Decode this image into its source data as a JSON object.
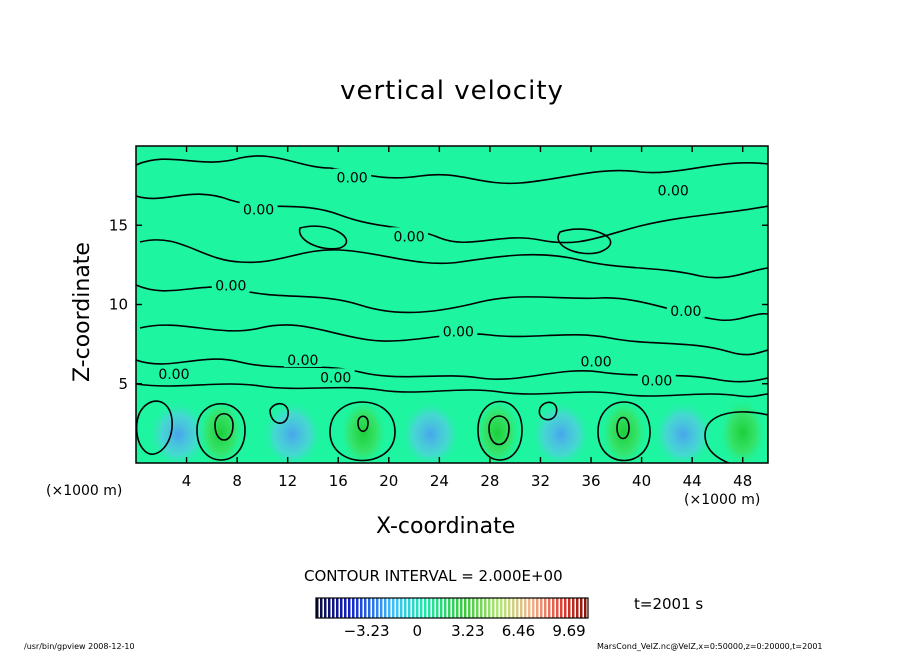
{
  "colors": {
    "field_background": "#1ef5a0",
    "blue_anomaly": "#4fa8f0",
    "green_updraft": "#2ed84a",
    "contour_line": "#000000"
  },
  "chart_data": {
    "type": "contour",
    "title": "vertical velocity",
    "xlabel": "X-coordinate",
    "ylabel": "Z-coordinate",
    "x_unit_label": "(×1000 m)",
    "xlim": [
      0,
      50
    ],
    "ylim": [
      0,
      20
    ],
    "x_ticks": [
      4,
      8,
      12,
      16,
      20,
      24,
      28,
      32,
      36,
      40,
      44,
      48
    ],
    "y_ticks": [
      5,
      10,
      15
    ],
    "contour_interval_text": "CONTOUR INTERVAL = 2.000E+00",
    "contour_labels": [
      {
        "text": "0.00",
        "x": 17.1,
        "z": 18.0
      },
      {
        "text": "0.00",
        "x": 9.7,
        "z": 16.0
      },
      {
        "text": "0.00",
        "x": 21.6,
        "z": 14.3
      },
      {
        "text": "0.00",
        "x": 42.5,
        "z": 17.2
      },
      {
        "text": "0.00",
        "x": 7.5,
        "z": 11.2
      },
      {
        "text": "0.00",
        "x": 43.5,
        "z": 9.6
      },
      {
        "text": "0.00",
        "x": 25.5,
        "z": 8.3
      },
      {
        "text": "0.00",
        "x": 13.2,
        "z": 6.5
      },
      {
        "text": "0.00",
        "x": 3.0,
        "z": 5.6
      },
      {
        "text": "0.00",
        "x": 15.8,
        "z": 5.4
      },
      {
        "text": "0.00",
        "x": 36.4,
        "z": 6.4
      },
      {
        "text": "0.00",
        "x": 41.2,
        "z": 5.2
      }
    ],
    "updraft_cores_x": [
      6.7,
      18.0,
      28.6,
      38.6,
      48.0
    ],
    "colorbar": {
      "ticks": [
        -3.23,
        0,
        3.23,
        6.46,
        9.69
      ],
      "tick_labels": [
        "−3.23",
        "0",
        "3.23",
        "6.46",
        "9.69"
      ],
      "range": [
        -6.46,
        10.9
      ]
    },
    "time_label": "t=2001 s"
  },
  "footer": {
    "left": "/usr/bin/gpview   2008-12-10",
    "right": "MarsCond_VelZ.nc@VelZ,x=0:50000,z=0:20000,t=2001"
  }
}
